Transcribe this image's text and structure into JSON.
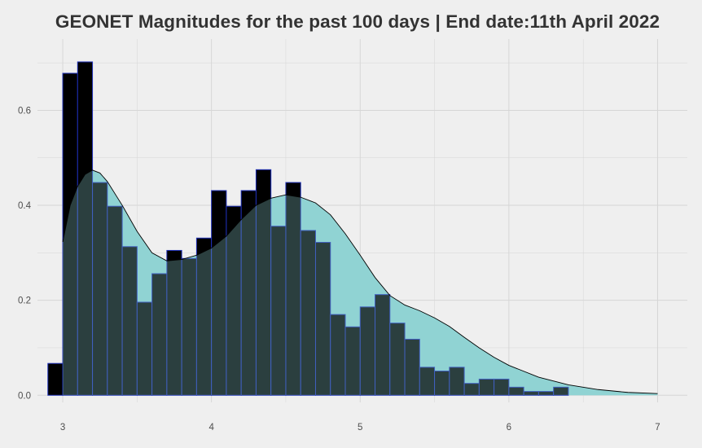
{
  "chart_data": {
    "type": "bar",
    "title": "GEONET Magnitudes for the past 100 days | End date:11th April 2022",
    "xlabel": "",
    "ylabel": "",
    "xlim": [
      2.83,
      7.2
    ],
    "ylim": [
      -0.015,
      0.75
    ],
    "x_ticks": [
      3,
      4,
      5,
      6,
      7
    ],
    "x_tick_labels": [
      "3",
      "4",
      "5",
      "6",
      "7"
    ],
    "y_ticks": [
      0.0,
      0.2,
      0.4,
      0.6
    ],
    "y_tick_labels": [
      "0.0",
      "0.2",
      "0.4",
      "0.6"
    ],
    "grid": true,
    "legend": "none",
    "bin_width": 0.1,
    "histogram": {
      "name": "",
      "bin_centers": [
        2.95,
        3.05,
        3.15,
        3.25,
        3.35,
        3.45,
        3.55,
        3.65,
        3.75,
        3.85,
        3.95,
        4.05,
        4.15,
        4.25,
        4.35,
        4.45,
        4.55,
        4.65,
        4.75,
        4.85,
        4.95,
        5.05,
        5.15,
        5.25,
        5.35,
        5.45,
        5.55,
        5.65,
        5.75,
        5.85,
        5.95,
        6.05,
        6.15,
        6.25,
        6.35,
        6.45,
        6.55,
        6.65,
        6.75,
        6.85,
        6.95
      ],
      "density": [
        0.067,
        0.678,
        0.702,
        0.448,
        0.398,
        0.313,
        0.196,
        0.256,
        0.305,
        0.288,
        0.331,
        0.431,
        0.398,
        0.431,
        0.475,
        0.356,
        0.448,
        0.347,
        0.322,
        0.17,
        0.144,
        0.186,
        0.212,
        0.152,
        0.118,
        0.059,
        0.051,
        0.059,
        0.025,
        0.034,
        0.034,
        0.017,
        0.008,
        0.008,
        0.017,
        0,
        0,
        0,
        0,
        0,
        0
      ]
    },
    "density_curve": {
      "name": "",
      "x": [
        3.0,
        3.05,
        3.1,
        3.15,
        3.2,
        3.25,
        3.3,
        3.4,
        3.5,
        3.6,
        3.7,
        3.8,
        3.9,
        4.0,
        4.1,
        4.2,
        4.3,
        4.4,
        4.5,
        4.6,
        4.7,
        4.8,
        4.9,
        5.0,
        5.1,
        5.2,
        5.3,
        5.4,
        5.5,
        5.6,
        5.7,
        5.8,
        5.9,
        6.0,
        6.2,
        6.4,
        6.6,
        6.8,
        7.0
      ],
      "y": [
        0.323,
        0.4,
        0.44,
        0.465,
        0.474,
        0.468,
        0.45,
        0.4,
        0.345,
        0.3,
        0.283,
        0.286,
        0.295,
        0.31,
        0.335,
        0.37,
        0.4,
        0.415,
        0.422,
        0.417,
        0.405,
        0.38,
        0.34,
        0.295,
        0.248,
        0.21,
        0.19,
        0.178,
        0.163,
        0.145,
        0.122,
        0.1,
        0.08,
        0.063,
        0.038,
        0.022,
        0.012,
        0.006,
        0.0035
      ]
    },
    "colors": {
      "background": "#efefef",
      "grid": "#d6d6d6",
      "histogram_fill": "#000000",
      "histogram_edge": "#1f30b8",
      "density_fill": "#91d3d3",
      "density_alpha": 0.85,
      "density_line": "#000000",
      "title": "#333333",
      "tick_label": "#4d4d4d"
    }
  }
}
